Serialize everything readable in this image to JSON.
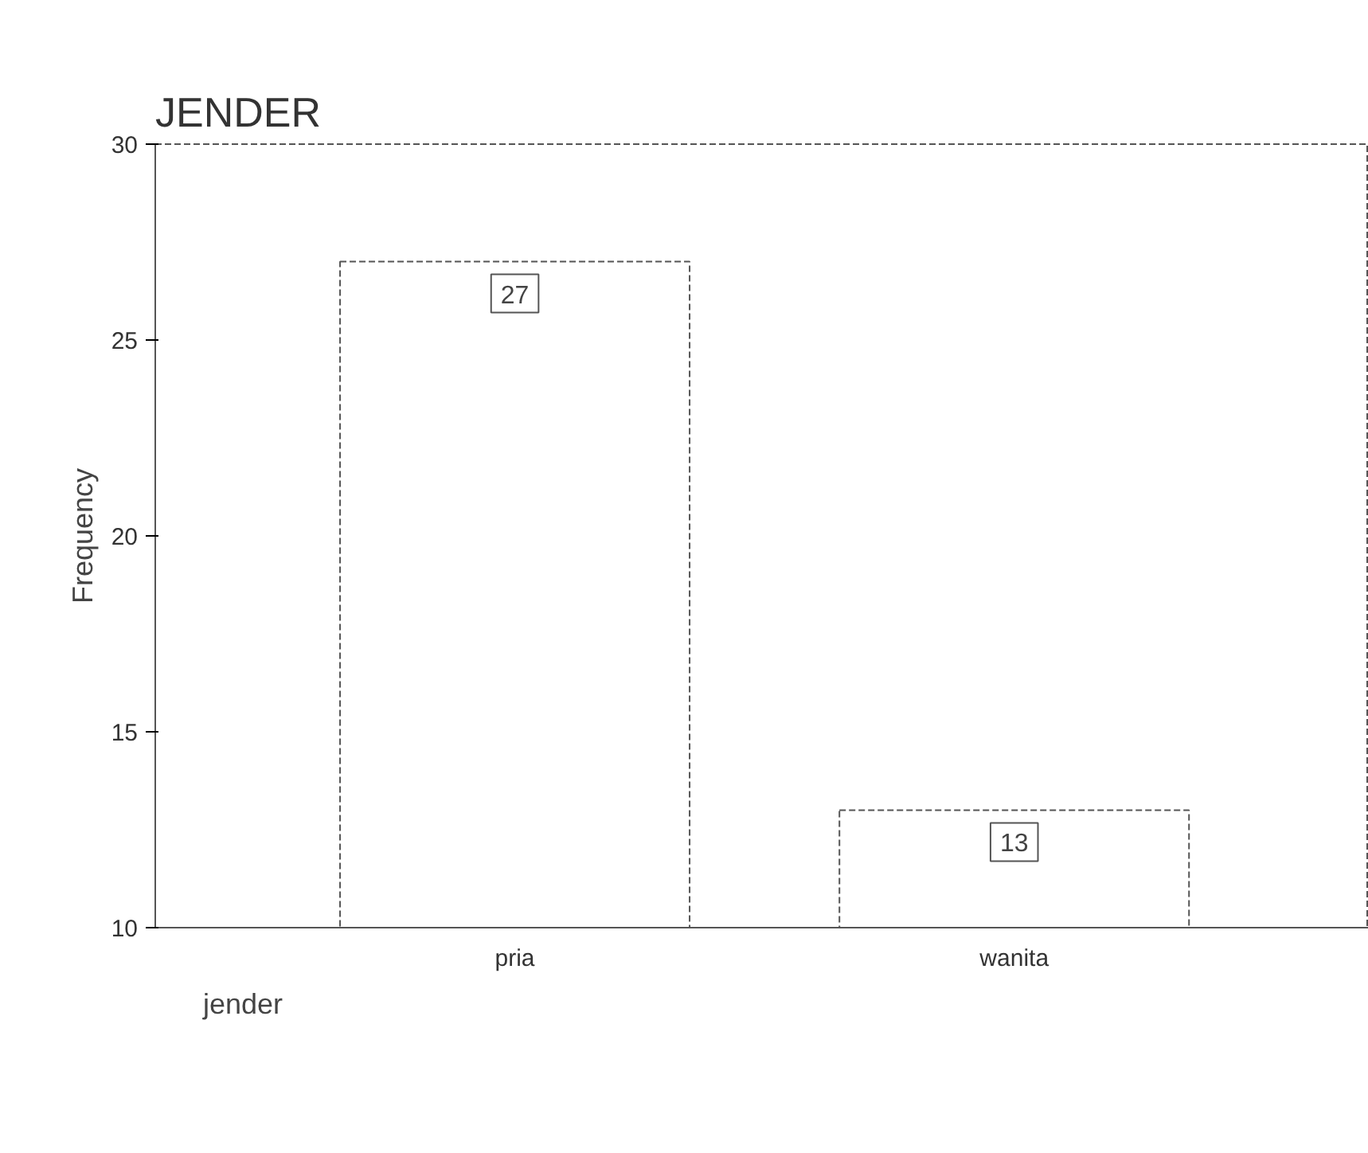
{
  "chart_data": {
    "type": "bar",
    "title": "JENDER",
    "xlabel": "jender",
    "ylabel": "Frequency",
    "categories": [
      "pria",
      "wanita"
    ],
    "values": [
      27,
      13
    ],
    "color": "#ffffff",
    "data_labels": true,
    "ylim": [
      10,
      30
    ],
    "yticks": [
      10,
      15,
      20,
      25,
      30
    ],
    "grid": false
  }
}
